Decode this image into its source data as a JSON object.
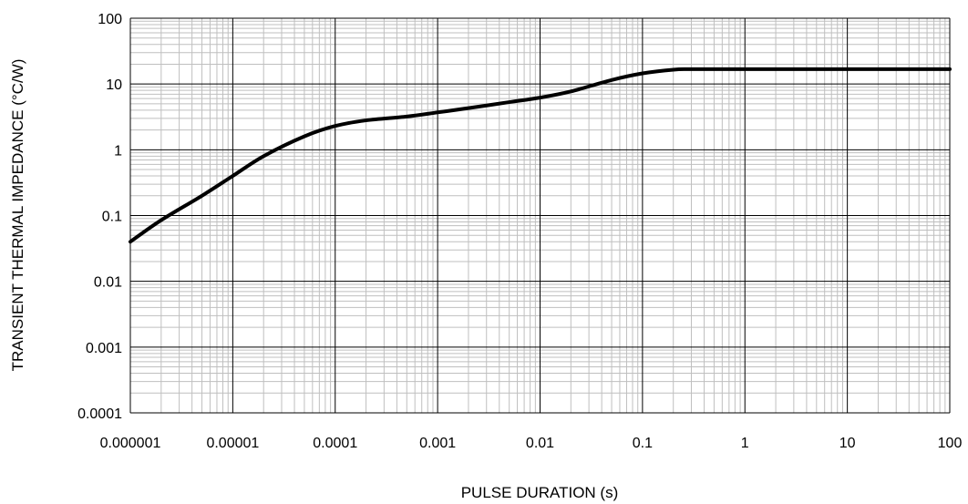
{
  "chart_data": {
    "type": "line",
    "title": "",
    "xlabel": "PULSE DURATION (s)",
    "ylabel": "TRANSIENT THERMAL IMPEDANCE (°C/W)",
    "x_scale": "log",
    "y_scale": "log",
    "xlim": [
      1e-06,
      100
    ],
    "ylim": [
      0.0001,
      100
    ],
    "grid": true,
    "x_tick_labels": [
      "0.000001",
      "0.00001",
      "0.0001",
      "0.001",
      "0.01",
      "0.1",
      "1",
      "10",
      "100"
    ],
    "y_tick_labels": [
      "0.0001",
      "0.001",
      "0.01",
      "0.1",
      "1",
      "10",
      "100"
    ],
    "series": [
      {
        "color": "#000000",
        "x": [
          1e-06,
          2e-06,
          5e-06,
          1e-05,
          2e-05,
          5e-05,
          0.0001,
          0.0002,
          0.0005,
          0.001,
          0.002,
          0.005,
          0.01,
          0.02,
          0.05,
          0.1,
          0.2,
          0.3,
          1,
          10,
          100
        ],
        "y": [
          0.04,
          0.085,
          0.2,
          0.4,
          0.8,
          1.6,
          2.3,
          2.8,
          3.2,
          3.7,
          4.3,
          5.3,
          6.2,
          7.7,
          11.5,
          14.5,
          16.5,
          16.8,
          16.8,
          16.8,
          16.8
        ]
      }
    ]
  }
}
